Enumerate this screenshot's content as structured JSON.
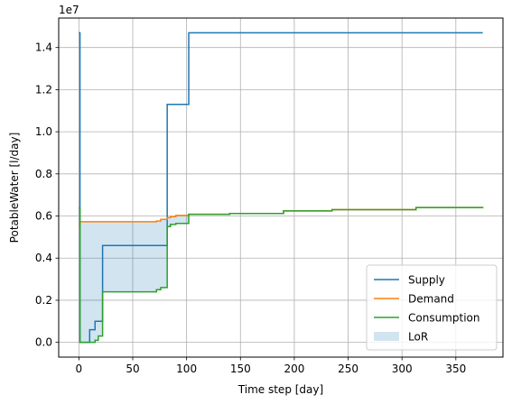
{
  "chart_data": {
    "type": "line",
    "title": "",
    "xlabel": "Time step [day]",
    "ylabel": "PotableWater [l/day]",
    "y_offset_text": "1e7",
    "xlim": [
      -18.75,
      393.75
    ],
    "ylim": [
      -0.07,
      1.54
    ],
    "x_ticks": [
      0,
      50,
      100,
      150,
      200,
      250,
      300,
      350
    ],
    "x_tick_labels": [
      "0",
      "50",
      "100",
      "150",
      "200",
      "250",
      "300",
      "350"
    ],
    "y_ticks": [
      0.0,
      0.2,
      0.4,
      0.6,
      0.8,
      1.0,
      1.2,
      1.4
    ],
    "y_tick_labels": [
      "0.0",
      "0.2",
      "0.4",
      "0.6",
      "0.8",
      "1.0",
      "1.2",
      "1.4"
    ],
    "grid": true,
    "legend_position": "lower right",
    "series": [
      {
        "name": "Supply",
        "color": "#1f77b4",
        "step": true,
        "x": [
          0,
          1,
          7,
          10,
          12,
          15,
          20,
          22,
          81,
          82,
          101,
          102,
          375
        ],
        "y": [
          1.47,
          0.0,
          0.0,
          0.06,
          0.06,
          0.1,
          0.1,
          0.46,
          0.46,
          1.13,
          1.13,
          1.47,
          1.47
        ]
      },
      {
        "name": "Demand",
        "color": "#ff7f0e",
        "step": true,
        "x": [
          0,
          1,
          68,
          72,
          76,
          82,
          85,
          90,
          102,
          140,
          190,
          235,
          313,
          375
        ],
        "y": [
          0.55,
          0.573,
          0.573,
          0.576,
          0.584,
          0.592,
          0.597,
          0.603,
          0.608,
          0.612,
          0.624,
          0.63,
          0.64,
          0.643
        ]
      },
      {
        "name": "Consumption",
        "color": "#2ca02c",
        "step": true,
        "x": [
          0,
          1,
          10,
          15,
          18,
          22,
          68,
          72,
          76,
          82,
          85,
          90,
          102,
          140,
          190,
          235,
          313,
          375
        ],
        "y": [
          0.64,
          0.0,
          0.0,
          0.01,
          0.03,
          0.24,
          0.24,
          0.25,
          0.26,
          0.55,
          0.56,
          0.565,
          0.608,
          0.612,
          0.624,
          0.63,
          0.64,
          0.643
        ]
      }
    ],
    "fill": {
      "name": "LoR",
      "color": "#1f77b4",
      "opacity": 0.2,
      "between": [
        "Demand",
        "Consumption"
      ]
    }
  }
}
